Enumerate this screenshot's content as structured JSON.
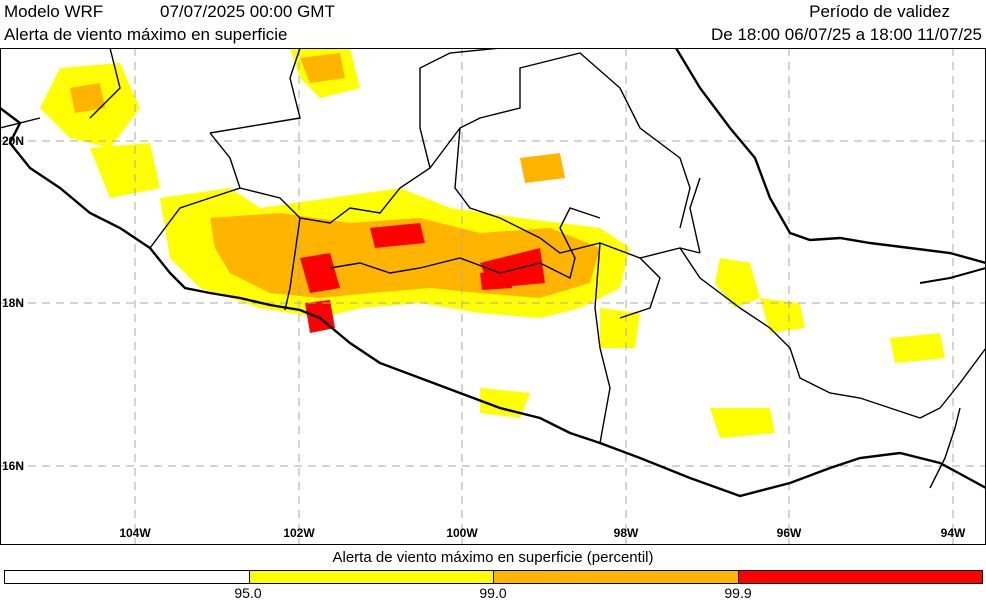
{
  "header": {
    "model": "Modelo WRF",
    "run_time": "07/07/2025 00:00 GMT",
    "subtitle": "Alerta de viento máximo en superficie",
    "validity_label": "Período de validez",
    "validity_range": "De 18:00 06/07/25 a 18:00 11/07/25"
  },
  "map": {
    "lon_range": [
      -105.6,
      -93.6
    ],
    "lat_range": [
      15.0,
      21.1
    ],
    "lon_ticks": [
      "104W",
      "102W",
      "100W",
      "98W",
      "96W",
      "94W"
    ],
    "lat_ticks": [
      "20N",
      "18N",
      "16N"
    ],
    "grid": true,
    "colors": {
      "land_border": "#000000",
      "grid": "#aaaaaa",
      "background": "#ffffff"
    }
  },
  "legend": {
    "title": "Alerta de viento máximo en superficie (percentil)",
    "classes": [
      {
        "label": "",
        "color": "#ffffff"
      },
      {
        "label": "95.0",
        "color": "#ffff00"
      },
      {
        "label": "99.0",
        "color": "#ffb400"
      },
      {
        "label": "99.9",
        "color": "#ff0000"
      }
    ]
  }
}
